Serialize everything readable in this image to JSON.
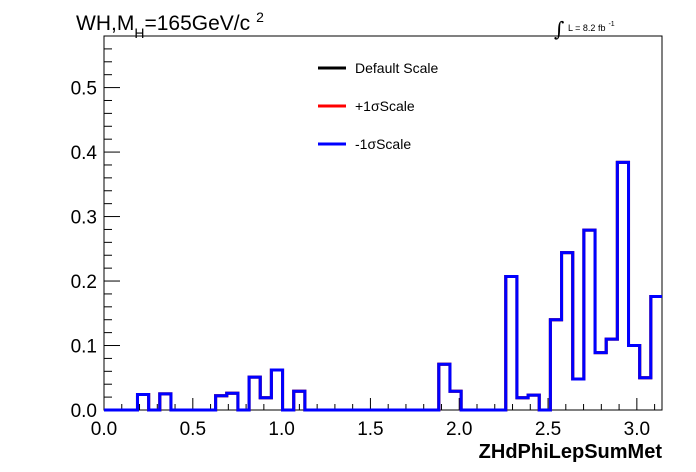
{
  "chart_data": {
    "type": "line",
    "title": {
      "prefix": "WH,M",
      "sub": "H",
      "suffix": "=165GeV/c",
      "sup": "2"
    },
    "lumi": {
      "integral": "∫",
      "text": "L = 8.2 fb",
      "sup": "-1"
    },
    "xlabel": "ZHdPhiLepSumMet",
    "ylabel": "",
    "xlim": [
      0,
      3.1416
    ],
    "ylim": [
      0,
      0.58
    ],
    "xticks": [
      {
        "v": 0.0,
        "label": "0.0"
      },
      {
        "v": 0.5,
        "label": "0.5"
      },
      {
        "v": 1.0,
        "label": "1.0"
      },
      {
        "v": 1.5,
        "label": "1.5"
      },
      {
        "v": 2.0,
        "label": "2.0"
      },
      {
        "v": 2.5,
        "label": "2.5"
      },
      {
        "v": 3.0,
        "label": "3.0"
      }
    ],
    "yticks": [
      {
        "v": 0.0,
        "label": "0.0"
      },
      {
        "v": 0.1,
        "label": "0.1"
      },
      {
        "v": 0.2,
        "label": "0.2"
      },
      {
        "v": 0.3,
        "label": "0.3"
      },
      {
        "v": 0.4,
        "label": "0.4"
      },
      {
        "v": 0.5,
        "label": "0.5"
      }
    ],
    "bins": {
      "n": 50,
      "min": 0,
      "max": 3.1416
    },
    "legend": {
      "placement": "top-center",
      "entries": [
        {
          "label": "Default Scale",
          "color": "#000000"
        },
        {
          "label": "+1σScale",
          "color": "#ff0000"
        },
        {
          "label": "-1σScale",
          "color": "#0000ff"
        }
      ]
    },
    "series": [
      {
        "name": "Default Scale",
        "color": "#000000",
        "values": [
          0,
          0,
          0,
          0.024,
          0,
          0.025,
          0,
          0,
          0,
          0,
          0.022,
          0.026,
          0,
          0.051,
          0.019,
          0.062,
          0,
          0.029,
          0,
          0,
          0,
          0,
          0,
          0,
          0,
          0,
          0,
          0,
          0,
          0,
          0.071,
          0.029,
          0,
          0,
          0,
          0,
          0.207,
          0.019,
          0.023,
          0,
          0.14,
          0.244,
          0.048,
          0.279,
          0.089,
          0.11,
          0.384,
          0.1,
          0.05,
          0.176
        ]
      },
      {
        "name": "+1σScale",
        "color": "#ff0000",
        "values": [
          0,
          0,
          0,
          0.024,
          0,
          0.025,
          0,
          0,
          0,
          0,
          0.022,
          0.026,
          0,
          0.051,
          0.019,
          0.062,
          0,
          0.029,
          0,
          0,
          0,
          0,
          0,
          0,
          0,
          0,
          0,
          0,
          0,
          0,
          0.071,
          0.029,
          0,
          0,
          0,
          0,
          0.207,
          0.019,
          0.023,
          0,
          0.14,
          0.244,
          0.048,
          0.279,
          0.089,
          0.11,
          0.384,
          0.1,
          0.05,
          0.176
        ]
      },
      {
        "name": "-1σScale",
        "color": "#0000ff",
        "values": [
          0,
          0,
          0,
          0.024,
          0,
          0.025,
          0,
          0,
          0,
          0,
          0.022,
          0.026,
          0,
          0.051,
          0.019,
          0.062,
          0,
          0.029,
          0,
          0,
          0,
          0,
          0,
          0,
          0,
          0,
          0,
          0,
          0,
          0,
          0.071,
          0.029,
          0,
          0,
          0,
          0,
          0.207,
          0.019,
          0.023,
          0,
          0.14,
          0.244,
          0.048,
          0.279,
          0.089,
          0.11,
          0.384,
          0.1,
          0.05,
          0.176
        ]
      }
    ]
  }
}
